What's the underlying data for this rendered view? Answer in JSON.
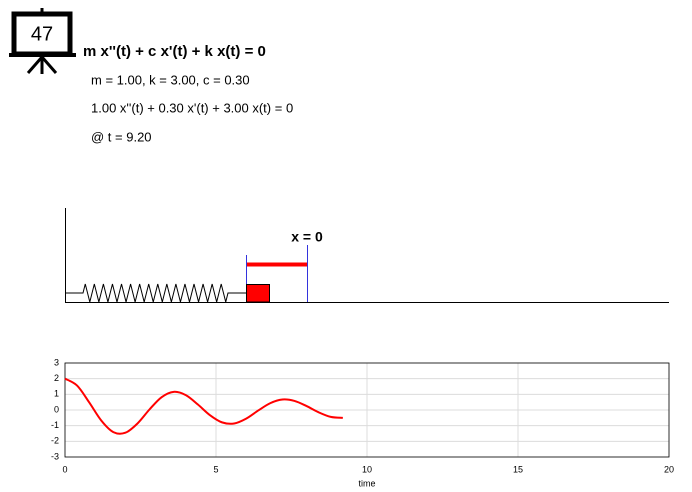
{
  "icon": {
    "label": "47"
  },
  "equation": "m x''(t) + c x'(t) + k x(t) = 0",
  "parameters": "m = 1.00, k = 3.00, c = 0.30",
  "instance": "1.00 x''(t) + 0.30 x'(t) + 3.00 x(t) = 0",
  "time": "@ t = 9.20",
  "diagram": {
    "origin_label": "x = 0"
  },
  "chart_data": {
    "type": "line",
    "xlabel": "time",
    "x": [
      0,
      0.4,
      0.8,
      1.2,
      1.6,
      2.0,
      2.4,
      2.8,
      3.2,
      3.6,
      4.0,
      4.4,
      4.8,
      5.2,
      5.6,
      6.0,
      6.4,
      6.8,
      7.2,
      7.6,
      8.0,
      8.4,
      8.8,
      9.2
    ],
    "values": [
      2,
      1.56,
      0.49,
      -0.67,
      -1.41,
      -1.45,
      -0.86,
      0.04,
      0.82,
      1.16,
      0.95,
      0.35,
      -0.33,
      -0.79,
      -0.86,
      -0.55,
      -0.03,
      0.44,
      0.67,
      0.58,
      0.25,
      -0.15,
      -0.44,
      -0.5
    ],
    "color": "#ff0000",
    "xlim": [
      0,
      20
    ],
    "xticks": [
      0,
      5,
      10,
      15,
      20
    ],
    "ylim": [
      -3,
      3
    ],
    "yticks": [
      -3,
      -2,
      -1,
      0,
      1,
      2,
      3
    ],
    "grid": true
  }
}
